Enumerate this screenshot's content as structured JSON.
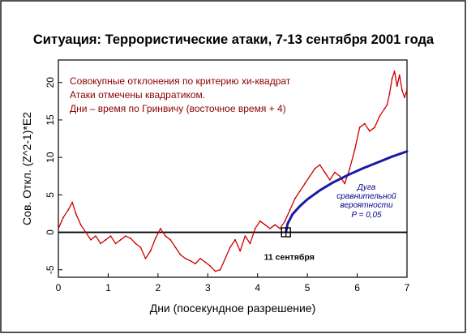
{
  "chart_data": {
    "type": "line",
    "title": "Ситуация: Террористические атаки, 7-13 сентября 2001 года",
    "xlabel": "Дни (посекундное разрешение)",
    "ylabel": "Сов. Откл. (Z^2-1)*E2",
    "xlim": [
      0,
      7
    ],
    "ylim": [
      -6,
      23
    ],
    "x_ticks": [
      "0",
      "1",
      "2",
      "3",
      "4",
      "5",
      "6",
      "7"
    ],
    "y_ticks": [
      {
        "value": -5,
        "label": "-5"
      },
      {
        "value": 0,
        "label": "0"
      },
      {
        "value": 5,
        "label": "5"
      },
      {
        "value": 10,
        "label": "10"
      },
      {
        "value": 15,
        "label": "15"
      },
      {
        "value": 20,
        "label": "20"
      }
    ],
    "grid": false,
    "colors": {
      "series": "#cc0000",
      "arc": "#1a1aa6",
      "annotation_text": "#8b0000",
      "arc_label": "#00008b",
      "axis": "#000000",
      "frame": "#000000"
    },
    "annotations": [
      "Совокупные отклонения по критерию хи-квадрат",
      "Атаки отмечены квадратиком.",
      "Дни – время по Гринвичу (восточное время + 4)"
    ],
    "event": {
      "label": "11 сентября",
      "x": 4.57,
      "y": 0
    },
    "arc": {
      "name": "Дуга сравнительной вероятности P = 0,05",
      "label_lines": [
        "Дуга",
        "сравнительной",
        "вероятности",
        "P = 0,05"
      ],
      "x": [
        4.57,
        4.6,
        4.7,
        4.85,
        5.0,
        5.25,
        5.5,
        5.8,
        6.1,
        6.4,
        6.7,
        7.0
      ],
      "y": [
        0,
        1.1,
        2.4,
        3.5,
        4.4,
        5.6,
        6.6,
        7.6,
        8.5,
        9.3,
        10.1,
        10.8
      ]
    },
    "series": [
      {
        "x": [
          0,
          0.1,
          0.2,
          0.28,
          0.35,
          0.45,
          0.55,
          0.65,
          0.75,
          0.85,
          0.95,
          1.05,
          1.15,
          1.25,
          1.35,
          1.45,
          1.55,
          1.65,
          1.75,
          1.85,
          1.95,
          2.05,
          2.15,
          2.25,
          2.35,
          2.45,
          2.55,
          2.65,
          2.75,
          2.85,
          2.95,
          3.05,
          3.15,
          3.25,
          3.35,
          3.45,
          3.55,
          3.65,
          3.75,
          3.85,
          3.95,
          4.05,
          4.15,
          4.25,
          4.35,
          4.45,
          4.55,
          4.65,
          4.75,
          4.85,
          4.95,
          5.05,
          5.15,
          5.25,
          5.35,
          5.45,
          5.55,
          5.65,
          5.75,
          5.85,
          5.95,
          6.05,
          6.15,
          6.25,
          6.35,
          6.45,
          6.55,
          6.6,
          6.65,
          6.7,
          6.75,
          6.8,
          6.85,
          6.9,
          6.95,
          7.0
        ],
        "y": [
          0.5,
          2.0,
          3.0,
          4.0,
          2.5,
          1.0,
          0.0,
          -1.0,
          -0.5,
          -1.5,
          -1.0,
          -0.5,
          -1.5,
          -1.0,
          -0.5,
          -0.8,
          -1.5,
          -2.0,
          -3.5,
          -2.5,
          -0.8,
          0.5,
          -0.5,
          -1.0,
          -2.0,
          -3.0,
          -3.5,
          -3.8,
          -4.2,
          -3.5,
          -4.0,
          -4.5,
          -5.2,
          -5.0,
          -3.5,
          -2.0,
          -1.0,
          -2.5,
          -0.5,
          -1.5,
          0.5,
          1.5,
          1.0,
          0.5,
          1.0,
          0.5,
          1.5,
          3.0,
          4.5,
          5.5,
          6.5,
          7.5,
          8.5,
          9.0,
          8.0,
          7.0,
          8.0,
          7.5,
          6.5,
          8.5,
          11.0,
          14.0,
          14.5,
          13.5,
          14.0,
          15.5,
          16.5,
          17.0,
          18.5,
          20.5,
          21.5,
          19.5,
          21.0,
          19.0,
          18.0,
          19.0
        ]
      }
    ]
  }
}
